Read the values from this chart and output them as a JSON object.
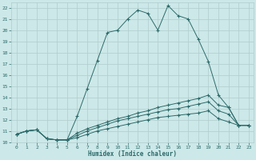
{
  "xlabel": "Humidex (Indice chaleur)",
  "background_color": "#cde8e8",
  "grid_color": "#b0cccc",
  "line_color": "#2d6b6b",
  "xlim": [
    -0.5,
    23.5
  ],
  "ylim": [
    10,
    22.5
  ],
  "xticks": [
    0,
    1,
    2,
    3,
    4,
    5,
    6,
    7,
    8,
    9,
    10,
    11,
    12,
    13,
    14,
    15,
    16,
    17,
    18,
    19,
    20,
    21,
    22,
    23
  ],
  "yticks": [
    10,
    11,
    12,
    13,
    14,
    15,
    16,
    17,
    18,
    19,
    20,
    21,
    22
  ],
  "series1_x": [
    0,
    1,
    2,
    3,
    4,
    5,
    6,
    7,
    8,
    9,
    10,
    11,
    12,
    13,
    14,
    15,
    16,
    17,
    18,
    19,
    20,
    21,
    22,
    23
  ],
  "series1_y": [
    10.7,
    11.0,
    11.1,
    10.3,
    10.2,
    10.2,
    12.3,
    14.8,
    17.3,
    19.8,
    20.0,
    21.0,
    21.8,
    21.5,
    20.0,
    22.2,
    21.3,
    21.0,
    19.2,
    17.2,
    14.2,
    13.1,
    11.5,
    11.5
  ],
  "series2_x": [
    0,
    1,
    2,
    3,
    4,
    5,
    6,
    7,
    8,
    9,
    10,
    11,
    12,
    13,
    14,
    15,
    16,
    17,
    18,
    19,
    20,
    21,
    22,
    23
  ],
  "series2_y": [
    10.7,
    11.0,
    11.1,
    10.3,
    10.2,
    10.2,
    10.8,
    11.2,
    11.5,
    11.8,
    12.1,
    12.3,
    12.6,
    12.8,
    13.1,
    13.3,
    13.5,
    13.7,
    13.9,
    14.2,
    13.3,
    13.1,
    11.5,
    11.5
  ],
  "series3_x": [
    0,
    1,
    2,
    3,
    4,
    5,
    6,
    7,
    8,
    9,
    10,
    11,
    12,
    13,
    14,
    15,
    16,
    17,
    18,
    19,
    20,
    21,
    22,
    23
  ],
  "series3_y": [
    10.7,
    11.0,
    11.1,
    10.3,
    10.2,
    10.2,
    10.6,
    11.0,
    11.3,
    11.6,
    11.9,
    12.1,
    12.3,
    12.5,
    12.7,
    12.9,
    13.0,
    13.2,
    13.4,
    13.6,
    12.8,
    12.5,
    11.5,
    11.5
  ],
  "series4_x": [
    0,
    1,
    2,
    3,
    4,
    5,
    6,
    7,
    8,
    9,
    10,
    11,
    12,
    13,
    14,
    15,
    16,
    17,
    18,
    19,
    20,
    21,
    22,
    23
  ],
  "series4_y": [
    10.7,
    11.0,
    11.1,
    10.3,
    10.2,
    10.2,
    10.4,
    10.7,
    11.0,
    11.2,
    11.4,
    11.6,
    11.8,
    12.0,
    12.2,
    12.3,
    12.4,
    12.5,
    12.6,
    12.8,
    12.1,
    11.8,
    11.5,
    11.5
  ]
}
